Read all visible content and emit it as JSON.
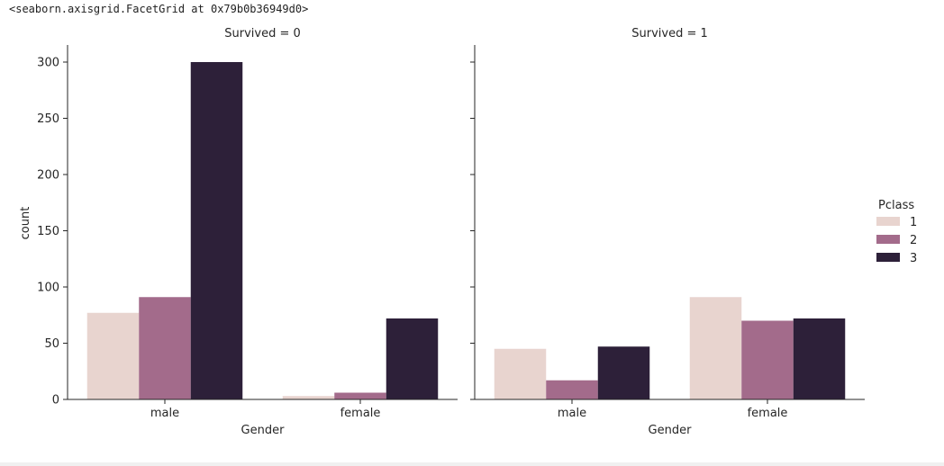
{
  "output_repr": "<seaborn.axisgrid.FacetGrid at 0x79b0b36949d0>",
  "chart_data": {
    "type": "bar",
    "ylabel": "count",
    "xlabel": "Gender",
    "ylim": [
      0,
      315
    ],
    "yticks": [
      0,
      50,
      100,
      150,
      200,
      250,
      300
    ],
    "categories": [
      "male",
      "female"
    ],
    "legend": {
      "title": "Pclass",
      "placement": "right",
      "entries": [
        {
          "label": "1",
          "color": "#e8d4cf"
        },
        {
          "label": "2",
          "color": "#a36b8b"
        },
        {
          "label": "3",
          "color": "#2d2039"
        }
      ]
    },
    "panels": [
      {
        "title": "Survived = 0",
        "series": [
          {
            "name": "1",
            "values": [
              77,
              3
            ]
          },
          {
            "name": "2",
            "values": [
              91,
              6
            ]
          },
          {
            "name": "3",
            "values": [
              300,
              72
            ]
          }
        ]
      },
      {
        "title": "Survived = 1",
        "series": [
          {
            "name": "1",
            "values": [
              45,
              91
            ]
          },
          {
            "name": "2",
            "values": [
              17,
              70
            ]
          },
          {
            "name": "3",
            "values": [
              47,
              72
            ]
          }
        ]
      }
    ]
  }
}
